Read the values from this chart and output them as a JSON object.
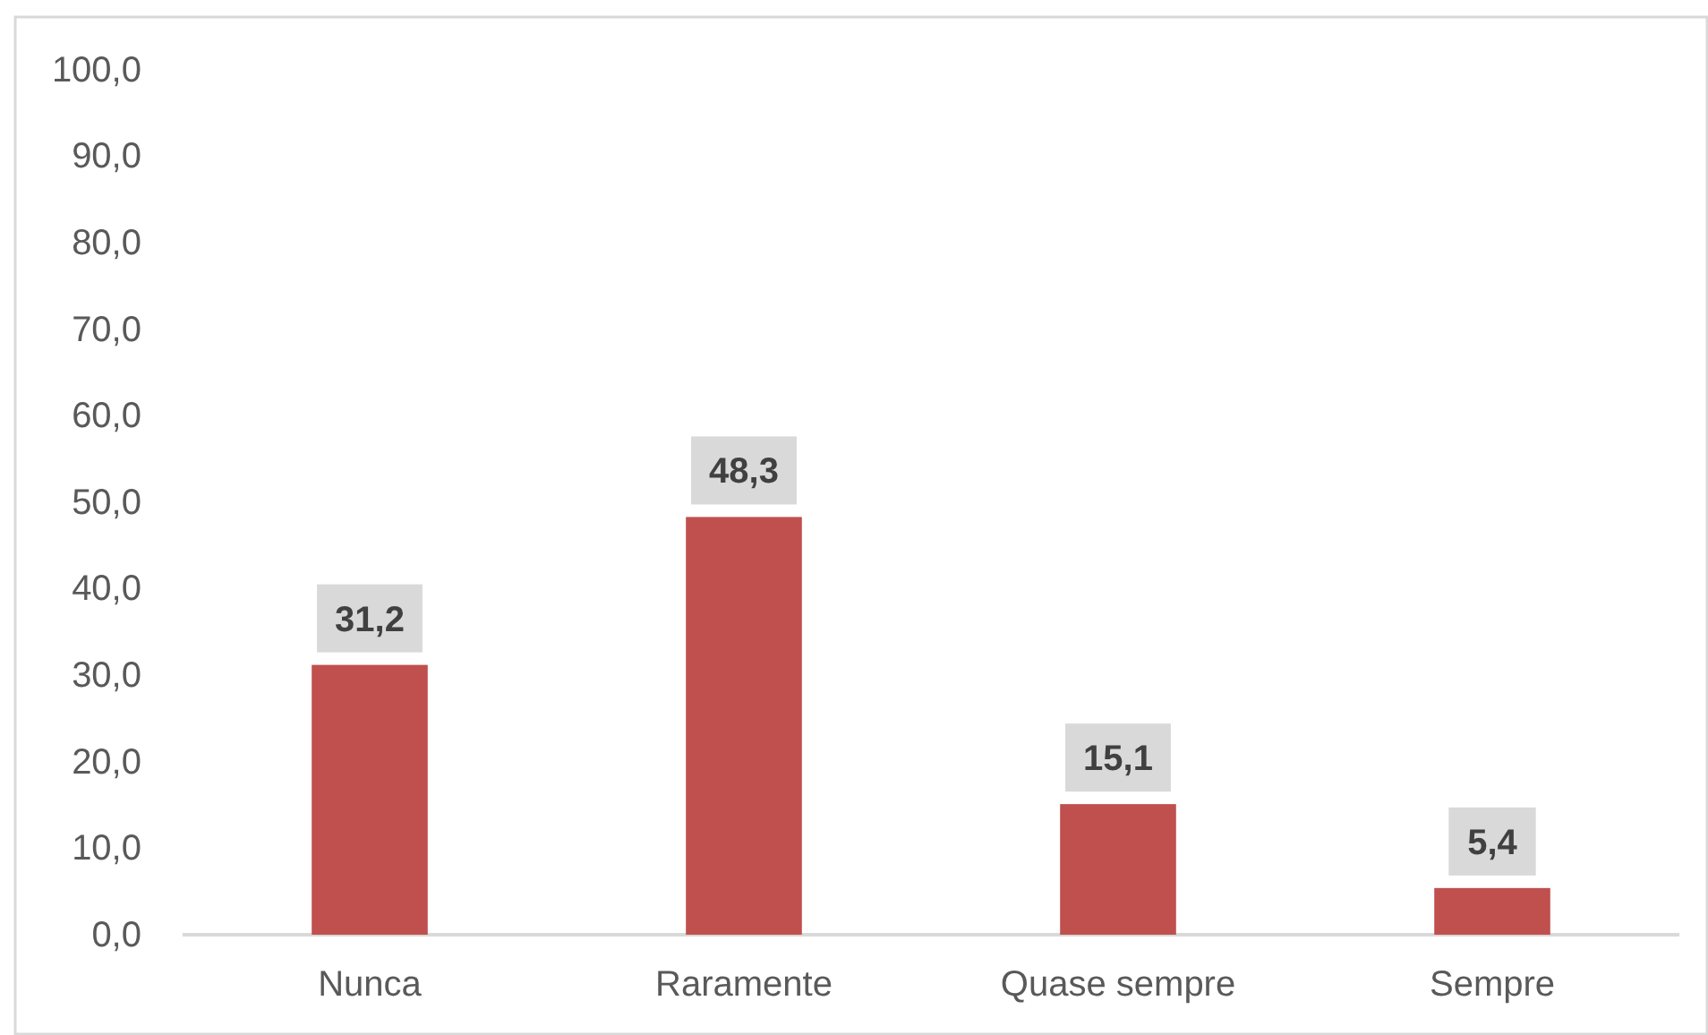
{
  "chart_data": {
    "type": "bar",
    "categories": [
      "Nunca",
      "Raramente",
      "Quase sempre",
      "Sempre"
    ],
    "values": [
      31.2,
      48.3,
      15.1,
      5.4
    ],
    "value_labels": [
      "31,2",
      "48,3",
      "15,1",
      "5,4"
    ],
    "color": "#c0504d",
    "ylim": [
      0,
      100
    ],
    "yticks": [
      {
        "value": 0,
        "label": "0,0"
      },
      {
        "value": 10,
        "label": "10,0"
      },
      {
        "value": 20,
        "label": "20,0"
      },
      {
        "value": 30,
        "label": "30,0"
      },
      {
        "value": 40,
        "label": "40,0"
      },
      {
        "value": 50,
        "label": "50,0"
      },
      {
        "value": 60,
        "label": "60,0"
      },
      {
        "value": 70,
        "label": "70,0"
      },
      {
        "value": 80,
        "label": "80,0"
      },
      {
        "value": 90,
        "label": "90,0"
      },
      {
        "value": 100,
        "label": "100,0"
      }
    ],
    "grid": false
  }
}
